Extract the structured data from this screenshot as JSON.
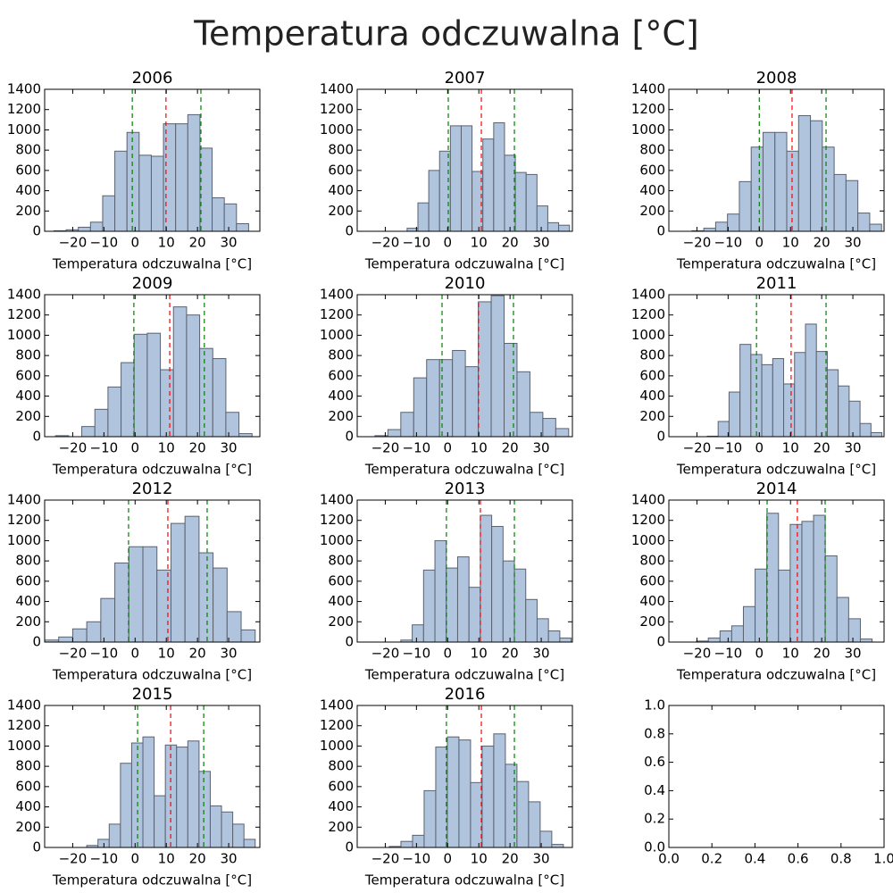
{
  "title": "Temperatura odczuwalna [°C]",
  "chart_data": [
    {
      "type": "histogram",
      "title": "2006",
      "xlabel": "Temperatura odczuwalna [°C]",
      "color": "#b0c4de",
      "edgecolor": "#5a6270",
      "bins": [
        -26,
        -22.1,
        -18.2,
        -14.3,
        -10.4,
        -6.5,
        -2.6,
        1.3,
        5.2,
        9.1,
        13,
        16.9,
        20.8,
        24.7,
        28.6,
        32.5,
        36.4
      ],
      "values": [
        5,
        15,
        40,
        90,
        350,
        790,
        975,
        750,
        740,
        1060,
        1060,
        1150,
        820,
        330,
        270,
        75
      ],
      "vlines": [
        {
          "value": -0.9,
          "color": "green"
        },
        {
          "value": 9.9,
          "color": "red"
        },
        {
          "value": 21.1,
          "color": "green"
        }
      ],
      "line_style": "dashed",
      "xlim": [
        -29,
        40
      ],
      "ylim": [
        0,
        1400
      ],
      "xticks": [
        {
          "value": -20,
          "label": "−20"
        },
        {
          "value": -10,
          "label": "−10"
        },
        0,
        10,
        20,
        30
      ],
      "yticks": [
        0,
        200,
        400,
        600,
        800,
        1000,
        1200,
        1400
      ]
    },
    {
      "type": "histogram",
      "title": "2007",
      "xlabel": "Temperatura odczuwalna [°C]",
      "color": "#b0c4de",
      "edgecolor": "#5a6270",
      "bins": [
        -13,
        -9.53,
        -6.06,
        -2.59,
        0.88,
        4.35,
        7.82,
        11.29,
        14.76,
        18.23,
        21.7,
        25.17,
        28.64,
        32.11,
        35.58,
        39.05
      ],
      "values": [
        30,
        280,
        600,
        790,
        1040,
        1040,
        590,
        910,
        1070,
        750,
        580,
        560,
        250,
        85,
        60
      ],
      "vlines": [
        {
          "value": 0.2,
          "color": "green"
        },
        {
          "value": 10.8,
          "color": "red"
        },
        {
          "value": 21.4,
          "color": "green"
        }
      ],
      "line_style": "dashed",
      "xlim": [
        -29,
        40
      ],
      "ylim": [
        0,
        1400
      ],
      "xticks": [
        {
          "value": -20,
          "label": "−20"
        },
        {
          "value": -10,
          "label": "−10"
        },
        0,
        10,
        20,
        30
      ],
      "yticks": [
        0,
        200,
        400,
        600,
        800,
        1000,
        1200,
        1400
      ]
    },
    {
      "type": "histogram",
      "title": "2008",
      "xlabel": "Temperatura odczuwalna [°C]",
      "color": "#b0c4de",
      "edgecolor": "#5a6270",
      "bins": [
        -21.6,
        -17.8,
        -14,
        -10.2,
        -6.4,
        -2.6,
        1.2,
        5,
        8.8,
        12.6,
        16.4,
        20.2,
        24,
        27.8,
        31.6,
        35.4,
        39.2
      ],
      "values": [
        5,
        30,
        90,
        170,
        490,
        830,
        975,
        975,
        790,
        1140,
        1090,
        830,
        560,
        500,
        180,
        70
      ],
      "vlines": [
        {
          "value": 0,
          "color": "green"
        },
        {
          "value": 10.5,
          "color": "red"
        },
        {
          "value": 21.4,
          "color": "green"
        }
      ],
      "line_style": "dashed",
      "xlim": [
        -29,
        40
      ],
      "ylim": [
        0,
        1400
      ],
      "xticks": [
        {
          "value": -20,
          "label": "−20"
        },
        {
          "value": -10,
          "label": "−10"
        },
        0,
        10,
        20,
        30
      ],
      "yticks": [
        0,
        200,
        400,
        600,
        800,
        1000,
        1200,
        1400
      ]
    },
    {
      "type": "histogram",
      "title": "2009",
      "xlabel": "Temperatura odczuwalna [°C]",
      "color": "#b0c4de",
      "edgecolor": "#5a6270",
      "bins": [
        -25.5,
        -21.3,
        -17.1,
        -12.9,
        -8.7,
        -4.5,
        -0.3,
        3.9,
        8.1,
        12.3,
        16.5,
        20.7,
        24.9,
        29.1,
        33.3,
        37.5
      ],
      "values": [
        10,
        0,
        100,
        270,
        490,
        730,
        1010,
        1020,
        660,
        1280,
        1200,
        870,
        770,
        240,
        30
      ],
      "vlines": [
        {
          "value": -0.4,
          "color": "green"
        },
        {
          "value": 11.1,
          "color": "red"
        },
        {
          "value": 22.2,
          "color": "green"
        }
      ],
      "line_style": "dashed",
      "xlim": [
        -29,
        40
      ],
      "ylim": [
        0,
        1400
      ],
      "xticks": [
        {
          "value": -20,
          "label": "−20"
        },
        {
          "value": -10,
          "label": "−10"
        },
        0,
        10,
        20,
        30
      ],
      "yticks": [
        0,
        200,
        400,
        600,
        800,
        1000,
        1200,
        1400
      ]
    },
    {
      "type": "histogram",
      "title": "2010",
      "xlabel": "Temperatura odczuwalna [°C]",
      "color": "#b0c4de",
      "edgecolor": "#5a6270",
      "bins": [
        -23.3,
        -19.16,
        -15.02,
        -10.88,
        -6.74,
        -2.6,
        1.54,
        5.68,
        9.82,
        13.96,
        18.1,
        22.24,
        26.38,
        30.52,
        34.66,
        38.8
      ],
      "values": [
        10,
        70,
        240,
        580,
        760,
        760,
        850,
        690,
        1330,
        1390,
        920,
        640,
        240,
        180,
        80
      ],
      "vlines": [
        {
          "value": -1.8,
          "color": "green"
        },
        {
          "value": 9.9,
          "color": "red"
        },
        {
          "value": 21.1,
          "color": "green"
        }
      ],
      "line_style": "dashed",
      "xlim": [
        -29,
        40
      ],
      "ylim": [
        0,
        1400
      ],
      "xticks": [
        {
          "value": -20,
          "label": "−20"
        },
        {
          "value": -10,
          "label": "−10"
        },
        0,
        10,
        20,
        30
      ],
      "yticks": [
        0,
        200,
        400,
        600,
        800,
        1000,
        1200,
        1400
      ]
    },
    {
      "type": "histogram",
      "title": "2011",
      "xlabel": "Temperatura odczuwalna [°C]",
      "color": "#b0c4de",
      "edgecolor": "#5a6270",
      "bins": [
        -16.7,
        -13.2,
        -9.7,
        -6.2,
        -2.7,
        0.8,
        4.3,
        7.8,
        11.3,
        14.8,
        18.3,
        21.8,
        25.3,
        28.8,
        32.3,
        35.8,
        39.3
      ],
      "values": [
        5,
        150,
        440,
        910,
        810,
        710,
        770,
        520,
        830,
        1110,
        840,
        660,
        500,
        350,
        130,
        40
      ],
      "vlines": [
        {
          "value": -0.9,
          "color": "green"
        },
        {
          "value": 10.2,
          "color": "red"
        },
        {
          "value": 21.4,
          "color": "green"
        }
      ],
      "line_style": "dashed",
      "xlim": [
        -29,
        40
      ],
      "ylim": [
        0,
        1400
      ],
      "xticks": [
        {
          "value": -20,
          "label": "−20"
        },
        {
          "value": -10,
          "label": "−10"
        },
        0,
        10,
        20,
        30
      ],
      "yticks": [
        0,
        200,
        400,
        600,
        800,
        1000,
        1200,
        1400
      ]
    },
    {
      "type": "histogram",
      "title": "2012",
      "xlabel": "Temperatura odczuwalna [°C]",
      "color": "#b0c4de",
      "edgecolor": "#5a6270",
      "bins": [
        -29,
        -24.5,
        -20,
        -15.5,
        -11,
        -6.5,
        -2,
        2.5,
        7,
        11.5,
        16,
        20.5,
        25,
        29.5,
        34,
        38.5
      ],
      "values": [
        20,
        50,
        130,
        200,
        430,
        780,
        940,
        940,
        710,
        1170,
        1240,
        880,
        730,
        300,
        120
      ],
      "vlines": [
        {
          "value": -2.1,
          "color": "green"
        },
        {
          "value": 10.5,
          "color": "red"
        },
        {
          "value": 23.1,
          "color": "green"
        }
      ],
      "line_style": "dashed",
      "xlim": [
        -29,
        40
      ],
      "ylim": [
        0,
        1400
      ],
      "xticks": [
        {
          "value": -20,
          "label": "−20"
        },
        {
          "value": -10,
          "label": "−10"
        },
        0,
        10,
        20,
        30
      ],
      "yticks": [
        0,
        200,
        400,
        600,
        800,
        1000,
        1200,
        1400
      ]
    },
    {
      "type": "histogram",
      "title": "2013",
      "xlabel": "Temperatura odczuwalna [°C]",
      "color": "#b0c4de",
      "edgecolor": "#5a6270",
      "bins": [
        -15,
        -11.36,
        -7.72,
        -4.08,
        -0.44,
        3.2,
        6.84,
        10.48,
        14.12,
        17.76,
        21.4,
        25.04,
        28.68,
        32.32,
        35.96,
        39.6
      ],
      "values": [
        20,
        170,
        710,
        1000,
        730,
        840,
        540,
        1250,
        1140,
        800,
        720,
        420,
        230,
        110,
        40
      ],
      "vlines": [
        {
          "value": -0.4,
          "color": "green"
        },
        {
          "value": 10.5,
          "color": "red"
        },
        {
          "value": 21.4,
          "color": "green"
        }
      ],
      "line_style": "dashed",
      "xlim": [
        -29,
        40
      ],
      "ylim": [
        0,
        1400
      ],
      "xticks": [
        {
          "value": -20,
          "label": "−20"
        },
        {
          "value": -10,
          "label": "−10"
        },
        0,
        10,
        20,
        30
      ],
      "yticks": [
        0,
        200,
        400,
        600,
        800,
        1000,
        1200,
        1400
      ]
    },
    {
      "type": "histogram",
      "title": "2014",
      "xlabel": "Temperatura odczuwalna [°C]",
      "color": "#b0c4de",
      "edgecolor": "#5a6270",
      "bins": [
        -20.1,
        -16.35,
        -12.6,
        -8.85,
        -5.1,
        -1.35,
        2.4,
        6.15,
        9.9,
        13.65,
        17.4,
        21.15,
        24.9,
        28.65,
        32.4,
        36.15
      ],
      "values": [
        10,
        40,
        110,
        160,
        350,
        720,
        1270,
        710,
        1160,
        1190,
        1250,
        850,
        440,
        230,
        30
      ],
      "vlines": [
        {
          "value": 2.5,
          "color": "green"
        },
        {
          "value": 12.2,
          "color": "red"
        },
        {
          "value": 21.1,
          "color": "green"
        }
      ],
      "line_style": "dashed",
      "xlim": [
        -29,
        40
      ],
      "ylim": [
        0,
        1400
      ],
      "xticks": [
        {
          "value": -20,
          "label": "−20"
        },
        {
          "value": -10,
          "label": "−10"
        },
        0,
        10,
        20,
        30
      ],
      "yticks": [
        0,
        200,
        400,
        600,
        800,
        1000,
        1200,
        1400
      ]
    },
    {
      "type": "histogram",
      "title": "2015",
      "xlabel": "Temperatura odczuwalna [°C]",
      "color": "#b0c4de",
      "edgecolor": "#5a6270",
      "bins": [
        -15.5,
        -11.9,
        -8.3,
        -4.7,
        -1.1,
        2.5,
        6.1,
        9.7,
        13.3,
        16.9,
        20.5,
        24.1,
        27.7,
        31.3,
        34.9,
        38.5
      ],
      "values": [
        20,
        80,
        230,
        830,
        1030,
        1090,
        510,
        1010,
        990,
        1050,
        750,
        410,
        350,
        230,
        80
      ],
      "vlines": [
        {
          "value": 0.8,
          "color": "green"
        },
        {
          "value": 11.4,
          "color": "red"
        },
        {
          "value": 22.0,
          "color": "green"
        }
      ],
      "line_style": "dashed",
      "xlim": [
        -29,
        40
      ],
      "ylim": [
        0,
        1400
      ],
      "xticks": [
        {
          "value": -20,
          "label": "−20"
        },
        {
          "value": -10,
          "label": "−10"
        },
        0,
        10,
        20,
        30
      ],
      "yticks": [
        0,
        200,
        400,
        600,
        800,
        1000,
        1200,
        1400
      ]
    },
    {
      "type": "histogram",
      "title": "2016",
      "xlabel": "Temperatura odczuwalna [°C]",
      "color": "#b0c4de",
      "edgecolor": "#5a6270",
      "bins": [
        -18.7,
        -14.98,
        -11.26,
        -7.54,
        -3.82,
        -0.1,
        3.62,
        7.34,
        11.06,
        14.78,
        18.5,
        22.22,
        25.94,
        29.66,
        33.38,
        37.1
      ],
      "values": [
        10,
        60,
        120,
        560,
        990,
        1090,
        1060,
        640,
        1000,
        1120,
        820,
        650,
        450,
        160,
        30
      ],
      "vlines": [
        {
          "value": -0.4,
          "color": "green"
        },
        {
          "value": 10.8,
          "color": "red"
        },
        {
          "value": 21.4,
          "color": "green"
        }
      ],
      "line_style": "dashed",
      "xlim": [
        -29,
        40
      ],
      "ylim": [
        0,
        1400
      ],
      "xticks": [
        {
          "value": -20,
          "label": "−20"
        },
        {
          "value": -10,
          "label": "−10"
        },
        0,
        10,
        20,
        30
      ],
      "yticks": [
        0,
        200,
        400,
        600,
        800,
        1000,
        1200,
        1400
      ]
    },
    {
      "type": "axes",
      "xlim": [
        0,
        1
      ],
      "ylim": [
        0,
        1
      ],
      "xticks": [
        {
          "value": 0,
          "label": "0.0"
        },
        {
          "value": 0.2,
          "label": "0.2"
        },
        {
          "value": 0.4,
          "label": "0.4"
        },
        {
          "value": 0.6,
          "label": "0.6"
        },
        {
          "value": 0.8,
          "label": "0.8"
        },
        {
          "value": 1,
          "label": "1.0"
        }
      ],
      "yticks": [
        {
          "value": 0,
          "label": "0.0"
        },
        {
          "value": 0.2,
          "label": "0.2"
        },
        {
          "value": 0.4,
          "label": "0.4"
        },
        {
          "value": 0.6,
          "label": "0.6"
        },
        {
          "value": 0.8,
          "label": "0.8"
        },
        {
          "value": 1,
          "label": "1.0"
        }
      ]
    }
  ]
}
